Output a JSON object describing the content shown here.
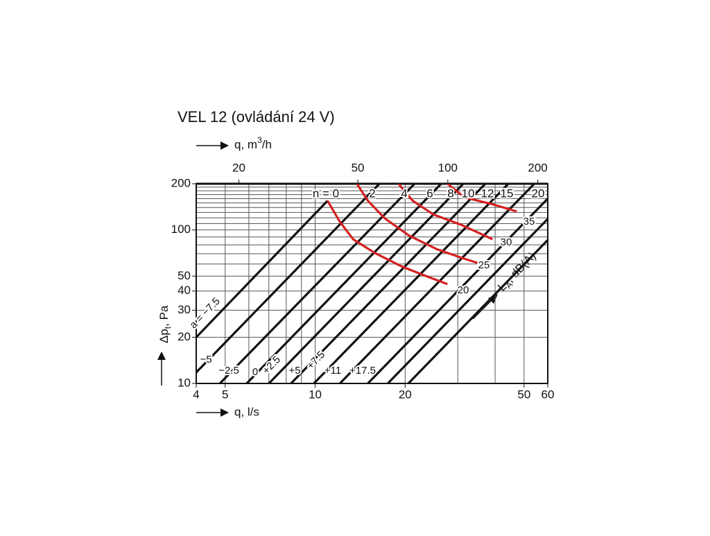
{
  "chart_data": {
    "type": "line",
    "title": "VEL 12 (ovládání 24 V)",
    "x_label": "q, l/s",
    "x2_label": {
      "main": "q, m",
      "sup": "3",
      "tail": "/h"
    },
    "y_label": {
      "main": "Δp",
      "sub": "t",
      "tail": ", Pa"
    },
    "level_label": {
      "main": "L",
      "sub": "A",
      "tail": ", dB(A)"
    },
    "log_x": true,
    "log_y": true,
    "xlim": [
      4,
      60
    ],
    "xticks": [
      4,
      5,
      10,
      20,
      50,
      60
    ],
    "xgrid": [
      5,
      6,
      7,
      8,
      9,
      10,
      20,
      30,
      40,
      50
    ],
    "x2lim": [
      14.4,
      216
    ],
    "x2ticks": [
      20,
      50,
      100,
      200
    ],
    "ylim": [
      10,
      200
    ],
    "yticks": [
      10,
      20,
      30,
      40,
      50,
      100,
      200
    ],
    "ygrid": [
      20,
      30,
      40,
      50,
      60,
      70,
      80,
      90,
      100,
      110,
      120,
      130,
      140,
      150,
      160,
      170,
      180,
      190
    ],
    "top_labels": [
      "n = 0",
      "2",
      "4",
      "6",
      "8",
      "10",
      "12",
      "15",
      "20"
    ],
    "series": [
      {
        "name": "a = −7.5",
        "color": "#111111",
        "x": [
          4,
          11.0
        ],
        "values": [
          20,
          155
        ]
      },
      {
        "name": "−5",
        "color": "#111111",
        "x": [
          4,
          16.4
        ],
        "values": [
          11.8,
          200
        ]
      },
      {
        "name": "−2.5",
        "color": "#111111",
        "x": [
          4.8,
          21.5
        ],
        "values": [
          10,
          200
        ]
      },
      {
        "name": "0",
        "color": "#111111",
        "x": [
          5.9,
          26.4
        ],
        "values": [
          10,
          200
        ]
      },
      {
        "name": "+2.5",
        "color": "#111111",
        "x": [
          7.0,
          31.3
        ],
        "values": [
          10,
          200
        ]
      },
      {
        "name": "+5",
        "color": "#111111",
        "x": [
          8.3,
          37.1
        ],
        "values": [
          10,
          200
        ]
      },
      {
        "name": "+7.5",
        "color": "#111111",
        "x": [
          9.9,
          44.3
        ],
        "values": [
          10,
          200
        ]
      },
      {
        "name": "+11",
        "color": "#111111",
        "x": [
          12.1,
          54.1
        ],
        "values": [
          10,
          200
        ]
      },
      {
        "name": "+17.5",
        "color": "#111111",
        "x": [
          15.0,
          60
        ],
        "values": [
          10,
          160
        ]
      },
      {
        "color": "#111111",
        "x": [
          17.5,
          60
        ],
        "values": [
          10,
          118
        ]
      },
      {
        "color": "#111111",
        "x": [
          20.5,
          60
        ],
        "values": [
          10,
          86
        ]
      },
      {
        "name": "20",
        "color": "#d42020",
        "x": [
          11.0,
          12.1,
          13.4,
          15.8,
          19.6,
          24.2,
          27.7
        ],
        "values": [
          155,
          113,
          87,
          71,
          57.5,
          49,
          44.4
        ]
      },
      {
        "name": "25",
        "color": "#d42020",
        "x": [
          13.8,
          15.0,
          17.1,
          20.6,
          25.5,
          30.8,
          35.2
        ],
        "values": [
          200,
          155,
          119,
          92,
          75,
          66,
          60.7
        ]
      },
      {
        "name": "30",
        "color": "#d42020",
        "x": [
          19.0,
          21.2,
          24.9,
          30.8,
          39.2
        ],
        "values": [
          200,
          155,
          126,
          108,
          87
        ]
      },
      {
        "name": "35",
        "color": "#d42020",
        "x": [
          27.7,
          31.6,
          39.2,
          47.2
        ],
        "values": [
          200,
          163,
          147,
          132
        ]
      }
    ]
  }
}
